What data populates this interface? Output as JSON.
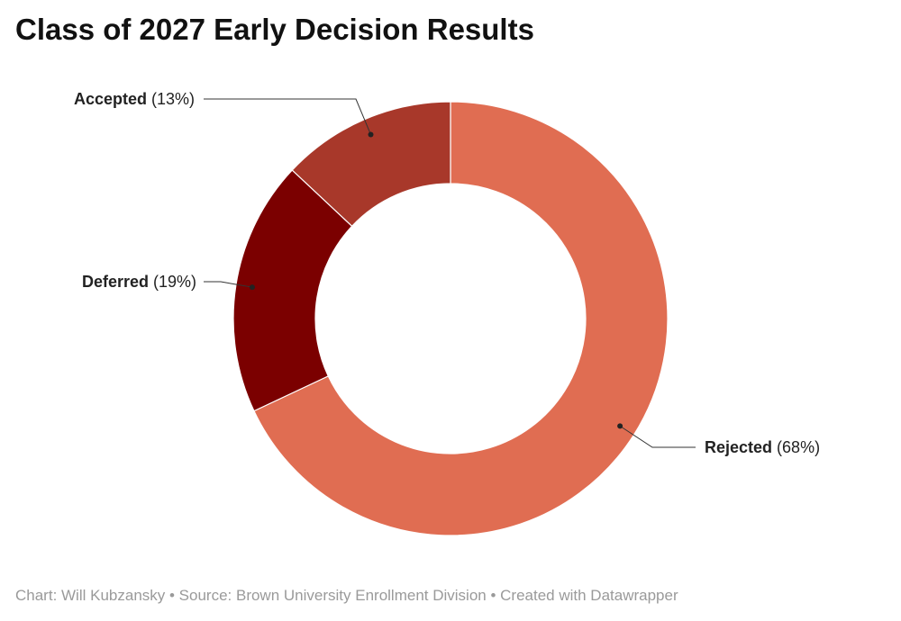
{
  "title": "Class of 2027 Early Decision Results",
  "footer": "Chart: Will Kubzansky • Source: Brown University Enrollment Division • Created with Datawrapper",
  "chart_data": {
    "type": "pie",
    "donut": true,
    "title": "Class of 2027 Early Decision Results",
    "slices": [
      {
        "name": "Rejected",
        "value": 68,
        "label": "(68%)",
        "color": "#e06d52"
      },
      {
        "name": "Deferred",
        "value": 19,
        "label": "(19%)",
        "color": "#7b0000"
      },
      {
        "name": "Accepted",
        "value": 13,
        "label": "(13%)",
        "color": "#a8382a"
      }
    ]
  }
}
